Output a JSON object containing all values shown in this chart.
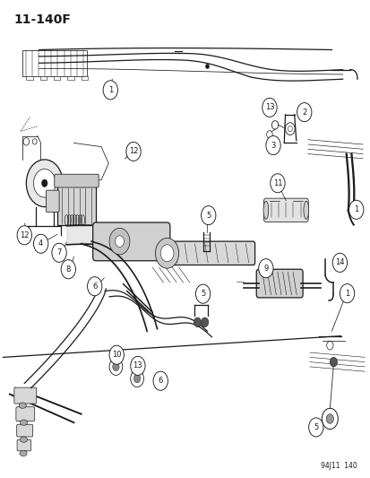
{
  "page_id": "11-140F",
  "bottom_id": "94J11  140",
  "bg_color": "#ffffff",
  "line_color": "#1a1a1a",
  "fig_width": 4.14,
  "fig_height": 5.33,
  "dpi": 100,
  "title_fontsize": 10,
  "label_fontsize": 6.5
}
